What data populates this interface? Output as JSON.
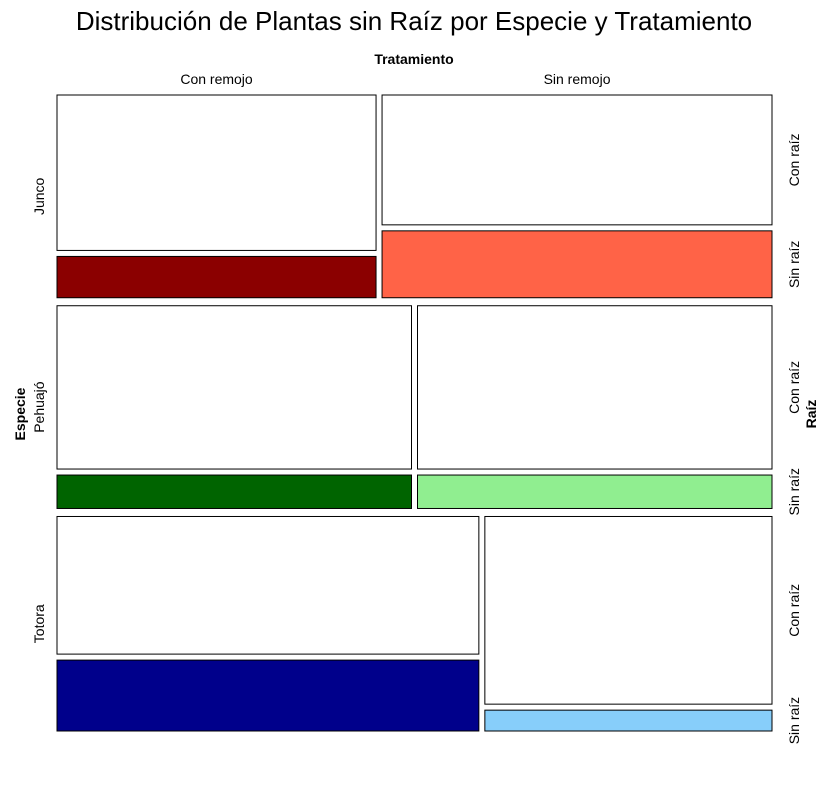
{
  "chart_data": {
    "type": "mosaic",
    "title": "Distribución de Plantas sin Raíz por Especie y Tratamiento",
    "x_variable": "Tratamiento",
    "y_variable": "Especie",
    "right_variable": "Raíz",
    "treatments": [
      "Con remojo",
      "Sin remojo"
    ],
    "root_levels": [
      "Con raíz",
      "Sin raíz"
    ],
    "species": [
      {
        "name": "Junco",
        "proportion": 0.327,
        "treatment_share": [
          0.45,
          0.55
        ],
        "sin_raiz_fraction": [
          0.21,
          0.34
        ],
        "colors": [
          "#8b0000",
          "#ff6347"
        ]
      },
      {
        "name": "Pehuajó",
        "proportion": 0.327,
        "treatment_share": [
          0.5,
          0.5
        ],
        "sin_raiz_fraction": [
          0.17,
          0.17
        ],
        "colors": [
          "#006400",
          "#90ee90"
        ]
      },
      {
        "name": "Totora",
        "proportion": 0.346,
        "treatment_share": [
          0.595,
          0.405
        ],
        "sin_raiz_fraction": [
          0.34,
          0.1
        ],
        "colors": [
          "#00008b",
          "#87cefa"
        ]
      }
    ]
  }
}
